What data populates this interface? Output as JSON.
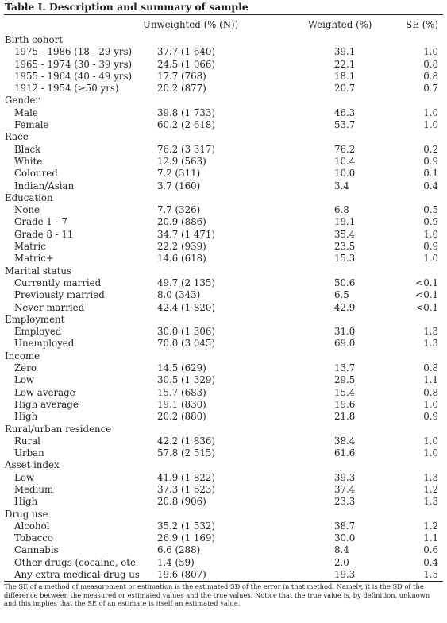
{
  "title": "Table I. Description and summary of sample",
  "headers": {
    "col1": "",
    "col2": "Unweighted (% (N))",
    "col3": "Weighted (%)",
    "col4": "SE (%)"
  },
  "groups": [
    {
      "name": "Birth cohort",
      "rows": [
        {
          "label": "1975 - 1986 (18 - 29 yrs)",
          "unweighted": "37.7 (1 640)",
          "weighted": "39.1",
          "se": "1.0"
        },
        {
          "label": "1965 - 1974 (30 - 39 yrs)",
          "unweighted": "24.5 (1 066)",
          "weighted": "22.1",
          "se": "0.8"
        },
        {
          "label": "1955 - 1964 (40 - 49 yrs)",
          "unweighted": "17.7 (768)",
          "weighted": "18.1",
          "se": "0.8"
        },
        {
          "label": "1912 - 1954 (≥50 yrs)",
          "unweighted": "20.2 (877)",
          "weighted": "20.7",
          "se": "0.7"
        }
      ]
    },
    {
      "name": "Gender",
      "rows": [
        {
          "label": "Male",
          "unweighted": "39.8 (1 733)",
          "weighted": "46.3",
          "se": "1.0"
        },
        {
          "label": "Female",
          "unweighted": "60.2 (2 618)",
          "weighted": "53.7",
          "se": "1.0"
        }
      ]
    },
    {
      "name": "Race",
      "rows": [
        {
          "label": "Black",
          "unweighted": "76.2 (3 317)",
          "weighted": "76.2",
          "se": "0.2"
        },
        {
          "label": "White",
          "unweighted": "12.9 (563)",
          "weighted": "10.4",
          "se": "0.9"
        },
        {
          "label": "Coloured",
          "unweighted": "7.2 (311)",
          "weighted": "10.0",
          "se": "0.1"
        },
        {
          "label": "Indian/Asian",
          "unweighted": "3.7 (160)",
          "weighted": "3.4",
          "se": "0.4"
        }
      ]
    },
    {
      "name": "Education",
      "rows": [
        {
          "label": "None",
          "unweighted": "7.7 (326)",
          "weighted": "6.8",
          "se": "0.5"
        },
        {
          "label": "Grade 1 - 7",
          "unweighted": "20.9 (886)",
          "weighted": "19.1",
          "se": "0.9"
        },
        {
          "label": "Grade 8 - 11",
          "unweighted": "34.7 (1 471)",
          "weighted": "35.4",
          "se": "1.0"
        },
        {
          "label": "Matric",
          "unweighted": "22.2 (939)",
          "weighted": "23.5",
          "se": "0.9"
        },
        {
          "label": "Matric+",
          "unweighted": "14.6 (618)",
          "weighted": "15.3",
          "se": "1.0"
        }
      ]
    },
    {
      "name": "Marital status",
      "rows": [
        {
          "label": "Currently married",
          "unweighted": "49.7 (2 135)",
          "weighted": "50.6",
          "se": "<0.1"
        },
        {
          "label": "Previously married",
          "unweighted": "8.0 (343)",
          "weighted": "6.5",
          "se": "<0.1"
        },
        {
          "label": "Never married",
          "unweighted": "42.4 (1 820)",
          "weighted": "42.9",
          "se": "<0.1"
        }
      ]
    },
    {
      "name": "Employment",
      "rows": [
        {
          "label": "Employed",
          "unweighted": "30.0 (1 306)",
          "weighted": "31.0",
          "se": "1.3"
        },
        {
          "label": "Unemployed",
          "unweighted": "70.0 (3 045)",
          "weighted": "69.0",
          "se": "1.3"
        }
      ]
    },
    {
      "name": "Income",
      "rows": [
        {
          "label": "Zero",
          "unweighted": "14.5 (629)",
          "weighted": "13.7",
          "se": "0.8"
        },
        {
          "label": "Low",
          "unweighted": "30.5 (1 329)",
          "weighted": "29.5",
          "se": "1.1"
        },
        {
          "label": "Low average",
          "unweighted": "15.7 (683)",
          "weighted": "15.4",
          "se": "0.8"
        },
        {
          "label": "High average",
          "unweighted": "19.1 (830)",
          "weighted": "19.6",
          "se": "1.0"
        },
        {
          "label": "High",
          "unweighted": "20.2 (880)",
          "weighted": "21.8",
          "se": "0.9"
        }
      ]
    },
    {
      "name": "Rural/urban residence",
      "rows": [
        {
          "label": "Rural",
          "unweighted": "42.2 (1 836)",
          "weighted": "38.4",
          "se": "1.0"
        },
        {
          "label": "Urban",
          "unweighted": "57.8 (2 515)",
          "weighted": "61.6",
          "se": "1.0"
        }
      ]
    },
    {
      "name": "Asset index",
      "rows": [
        {
          "label": "Low",
          "unweighted": "41.9 (1 822)",
          "weighted": "39.3",
          "se": "1.3"
        },
        {
          "label": "Medium",
          "unweighted": "37.3 (1 623)",
          "weighted": "37.4",
          "se": "1.2"
        },
        {
          "label": "High",
          "unweighted": "20.8 (906)",
          "weighted": "23.3",
          "se": "1.3"
        }
      ]
    },
    {
      "name": "Drug use",
      "rows": [
        {
          "label": "Alcohol",
          "unweighted": "35.2 (1 532)",
          "weighted": "38.7",
          "se": "1.2"
        },
        {
          "label": "Tobacco",
          "unweighted": "26.9 (1 169)",
          "weighted": "30.0",
          "se": "1.1"
        },
        {
          "label": "Cannabis",
          "unweighted": "6.6 (288)",
          "weighted": "8.4",
          "se": "0.6"
        },
        {
          "label": "Other drugs (cocaine, etc.)",
          "unweighted": "1.4 (59)",
          "weighted": "2.0",
          "se": "0.4"
        },
        {
          "label": "Any extra-medical drug use",
          "unweighted": "19.6 (807)",
          "weighted": "19.3",
          "se": "1.5"
        }
      ]
    }
  ],
  "footnote": "The SE of a method of measurement or estimation is the estimated SD of the error in that method. Namely, it is the SD of the difference between the measured or estimated values  and the  true values. Notice that the true value is, by definition, unknown and this implies that the SE of an estimate is itself an estimated value."
}
